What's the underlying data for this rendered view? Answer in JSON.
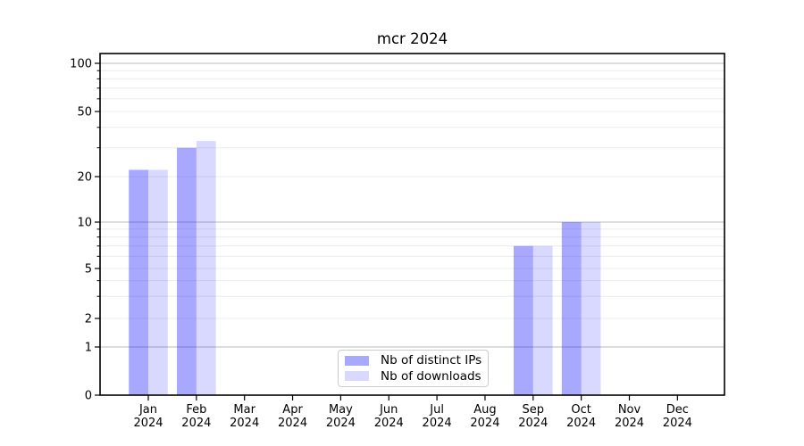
{
  "chart_data": {
    "type": "bar",
    "title": "mcr 2024",
    "year": "2024",
    "months": [
      "Jan",
      "Feb",
      "Mar",
      "Apr",
      "May",
      "Jun",
      "Jul",
      "Aug",
      "Sep",
      "Oct",
      "Nov",
      "Dec"
    ],
    "categories": [
      "Jan 2024",
      "Feb 2024",
      "Mar 2024",
      "Apr 2024",
      "May 2024",
      "Jun 2024",
      "Jul 2024",
      "Aug 2024",
      "Sep 2024",
      "Oct 2024",
      "Nov 2024",
      "Dec 2024"
    ],
    "series": [
      {
        "name": "Nb of distinct IPs",
        "color": "#a8a8ff",
        "color_rgba": "rgba(0,0,255,0.34)",
        "values": [
          22,
          30,
          0,
          0,
          0,
          0,
          0,
          0,
          7,
          10,
          0,
          0
        ]
      },
      {
        "name": "Nb of downloads",
        "color": "#d9d9ff",
        "color_rgba": "rgba(0,0,255,0.15)",
        "values": [
          22,
          33,
          0,
          0,
          0,
          0,
          0,
          0,
          7,
          10,
          0,
          0
        ]
      }
    ],
    "yscale": "symlog",
    "y_ticks": [
      0,
      1,
      2,
      5,
      10,
      20,
      50,
      100
    ],
    "y_minor_ticks": [
      3,
      4,
      6,
      7,
      8,
      9,
      30,
      40,
      60,
      70,
      80,
      90
    ],
    "ylim": [
      0,
      120
    ],
    "xlabel": "",
    "ylabel": "",
    "grid": true,
    "legend_position": "lower center",
    "colors": {
      "major_grid": "#c8c8c8",
      "minor_grid": "#ececec",
      "spine": "#000000",
      "text": "#000000"
    }
  }
}
